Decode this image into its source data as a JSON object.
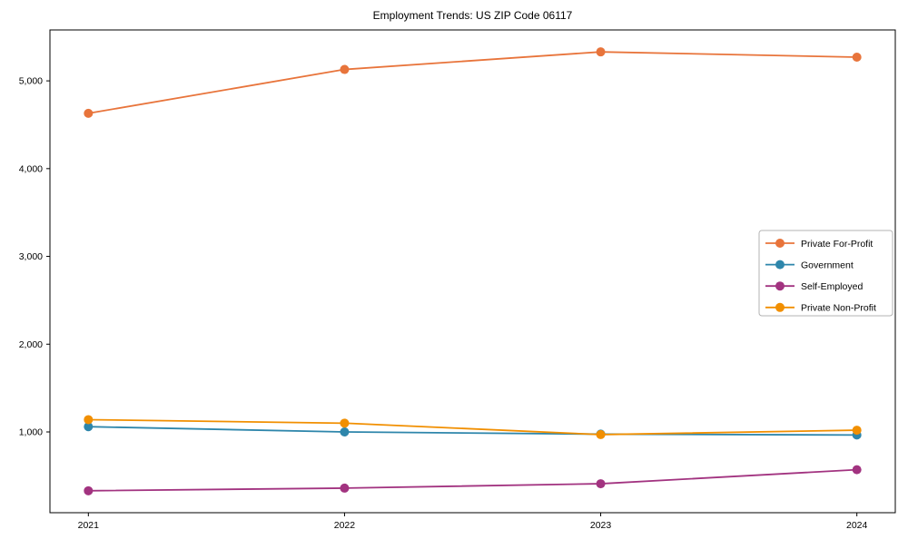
{
  "chart_data": {
    "type": "line",
    "title": "Employment Trends: US ZIP Code 06117",
    "x": [
      2021,
      2022,
      2023,
      2024
    ],
    "xtick_labels": [
      "2021",
      "2022",
      "2023",
      "2024"
    ],
    "yticks": [
      1000,
      2000,
      3000,
      4000,
      5000
    ],
    "ytick_labels": [
      "1,000",
      "2,000",
      "3,000",
      "4,000",
      "5,000"
    ],
    "xlim": [
      2020.85,
      2024.15
    ],
    "ylim": [
      80,
      5580
    ],
    "grid": false,
    "legend": {
      "position": "center-right",
      "border_color": "#b3b3b3",
      "background": "#ffffff"
    },
    "series": [
      {
        "name": "Private For-Profit",
        "color": "#E8743B",
        "values": [
          4630,
          5130,
          5330,
          5270
        ]
      },
      {
        "name": "Government",
        "color": "#2E86AB",
        "values": [
          1060,
          1000,
          975,
          965
        ]
      },
      {
        "name": "Self-Employed",
        "color": "#A23380",
        "values": [
          330,
          360,
          410,
          570
        ]
      },
      {
        "name": "Private Non-Profit",
        "color": "#F18F01",
        "values": [
          1140,
          1100,
          970,
          1020
        ]
      }
    ],
    "xlabel": "",
    "ylabel": ""
  }
}
